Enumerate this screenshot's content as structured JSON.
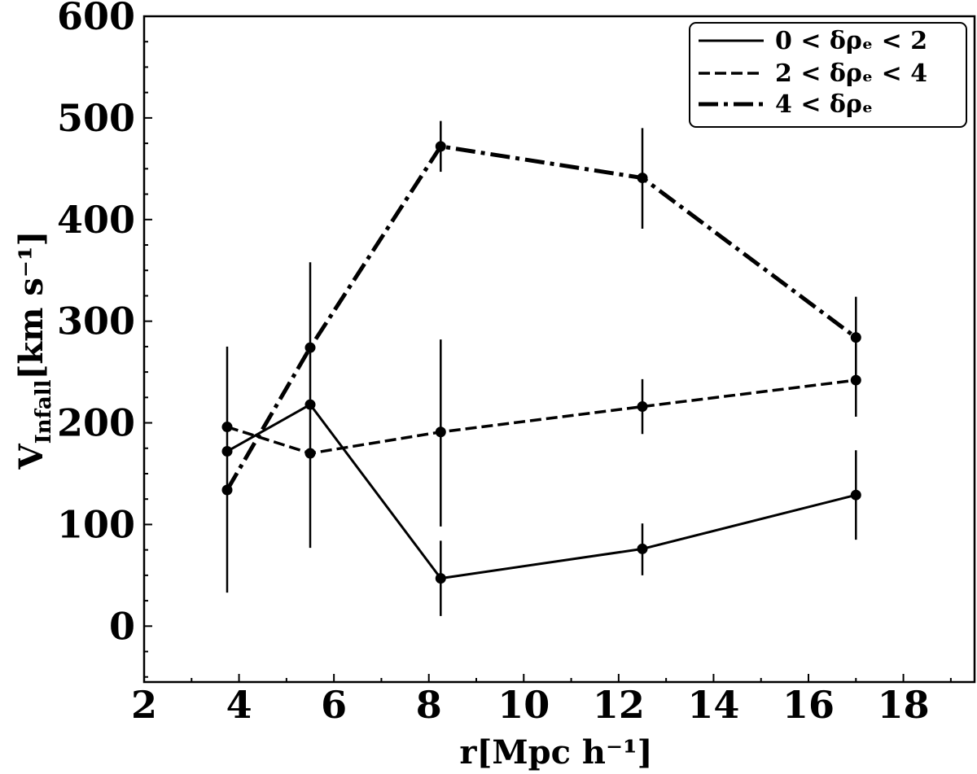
{
  "chart_data": {
    "type": "line",
    "xlabel": "r[Mpc h⁻¹]",
    "ylabel_main": "V",
    "ylabel_sub": "Infall",
    "ylabel_tail": "[km s⁻¹]",
    "xlim": [
      2,
      19.5
    ],
    "ylim": [
      -55,
      600
    ],
    "x_ticks": [
      "2",
      "4",
      "6",
      "8",
      "10",
      "12",
      "14",
      "16",
      "18"
    ],
    "y_ticks": [
      "0",
      "100",
      "200",
      "300",
      "400",
      "500",
      "600"
    ],
    "grid": false,
    "legend_position": "top-right",
    "series": [
      {
        "name": "0 < δρₑ < 2",
        "style": "solid",
        "x": [
          3.75,
          5.5,
          8.25,
          12.5,
          17.0
        ],
        "y": [
          172,
          218,
          47,
          76,
          129
        ],
        "yerr": [
          [
            134,
            77,
            10,
            50,
            85
          ],
          [
            275,
            358,
            84,
            101,
            173
          ]
        ]
      },
      {
        "name": "2 < δρₑ < 4",
        "style": "dashed",
        "x": [
          3.75,
          5.5,
          8.25,
          12.5,
          17.0
        ],
        "y": [
          196,
          170,
          191,
          216,
          242
        ],
        "yerr": [
          [
            196,
            170,
            98,
            189,
            206
          ],
          [
            196,
            170,
            282,
            243,
            278
          ]
        ]
      },
      {
        "name": "4 < δρₑ",
        "style": "dashdot",
        "x": [
          3.75,
          5.5,
          8.25,
          12.5,
          17.0
        ],
        "y": [
          134,
          274,
          472,
          441,
          284
        ],
        "yerr": [
          [
            33,
            274,
            447,
            391,
            245
          ],
          [
            134,
            274,
            497,
            490,
            324
          ]
        ]
      }
    ],
    "colors": {
      "line": "#000000",
      "background": "#ffffff"
    }
  }
}
